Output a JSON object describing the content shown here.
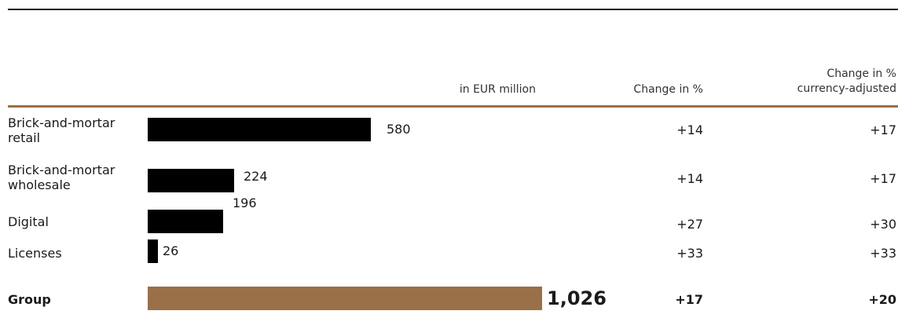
{
  "header": {
    "unit_label": "in EUR million",
    "change_label": "Change in %",
    "currency_label_line1": "Change in %",
    "currency_label_line2": "currency-adjusted"
  },
  "colors": {
    "bar": "#000000",
    "group_bar": "#9a7048",
    "rule": "#9a7048"
  },
  "chart_data": {
    "type": "bar",
    "orientation": "horizontal",
    "unit": "in EUR million",
    "categories": [
      "Brick-and-mortar retail",
      "Brick-and-mortar wholesale",
      "Digital",
      "Licenses",
      "Group"
    ],
    "values": [
      580,
      224,
      196,
      26,
      1026
    ],
    "value_labels": [
      "580",
      "224",
      "196",
      "26",
      "1,026"
    ],
    "change_pct": [
      "+14",
      "+14",
      "+27",
      "+33",
      "+17"
    ],
    "change_currency_adjusted": [
      "+17",
      "+17",
      "+30",
      "+33",
      "+20"
    ],
    "xlim": [
      0,
      1026
    ]
  }
}
